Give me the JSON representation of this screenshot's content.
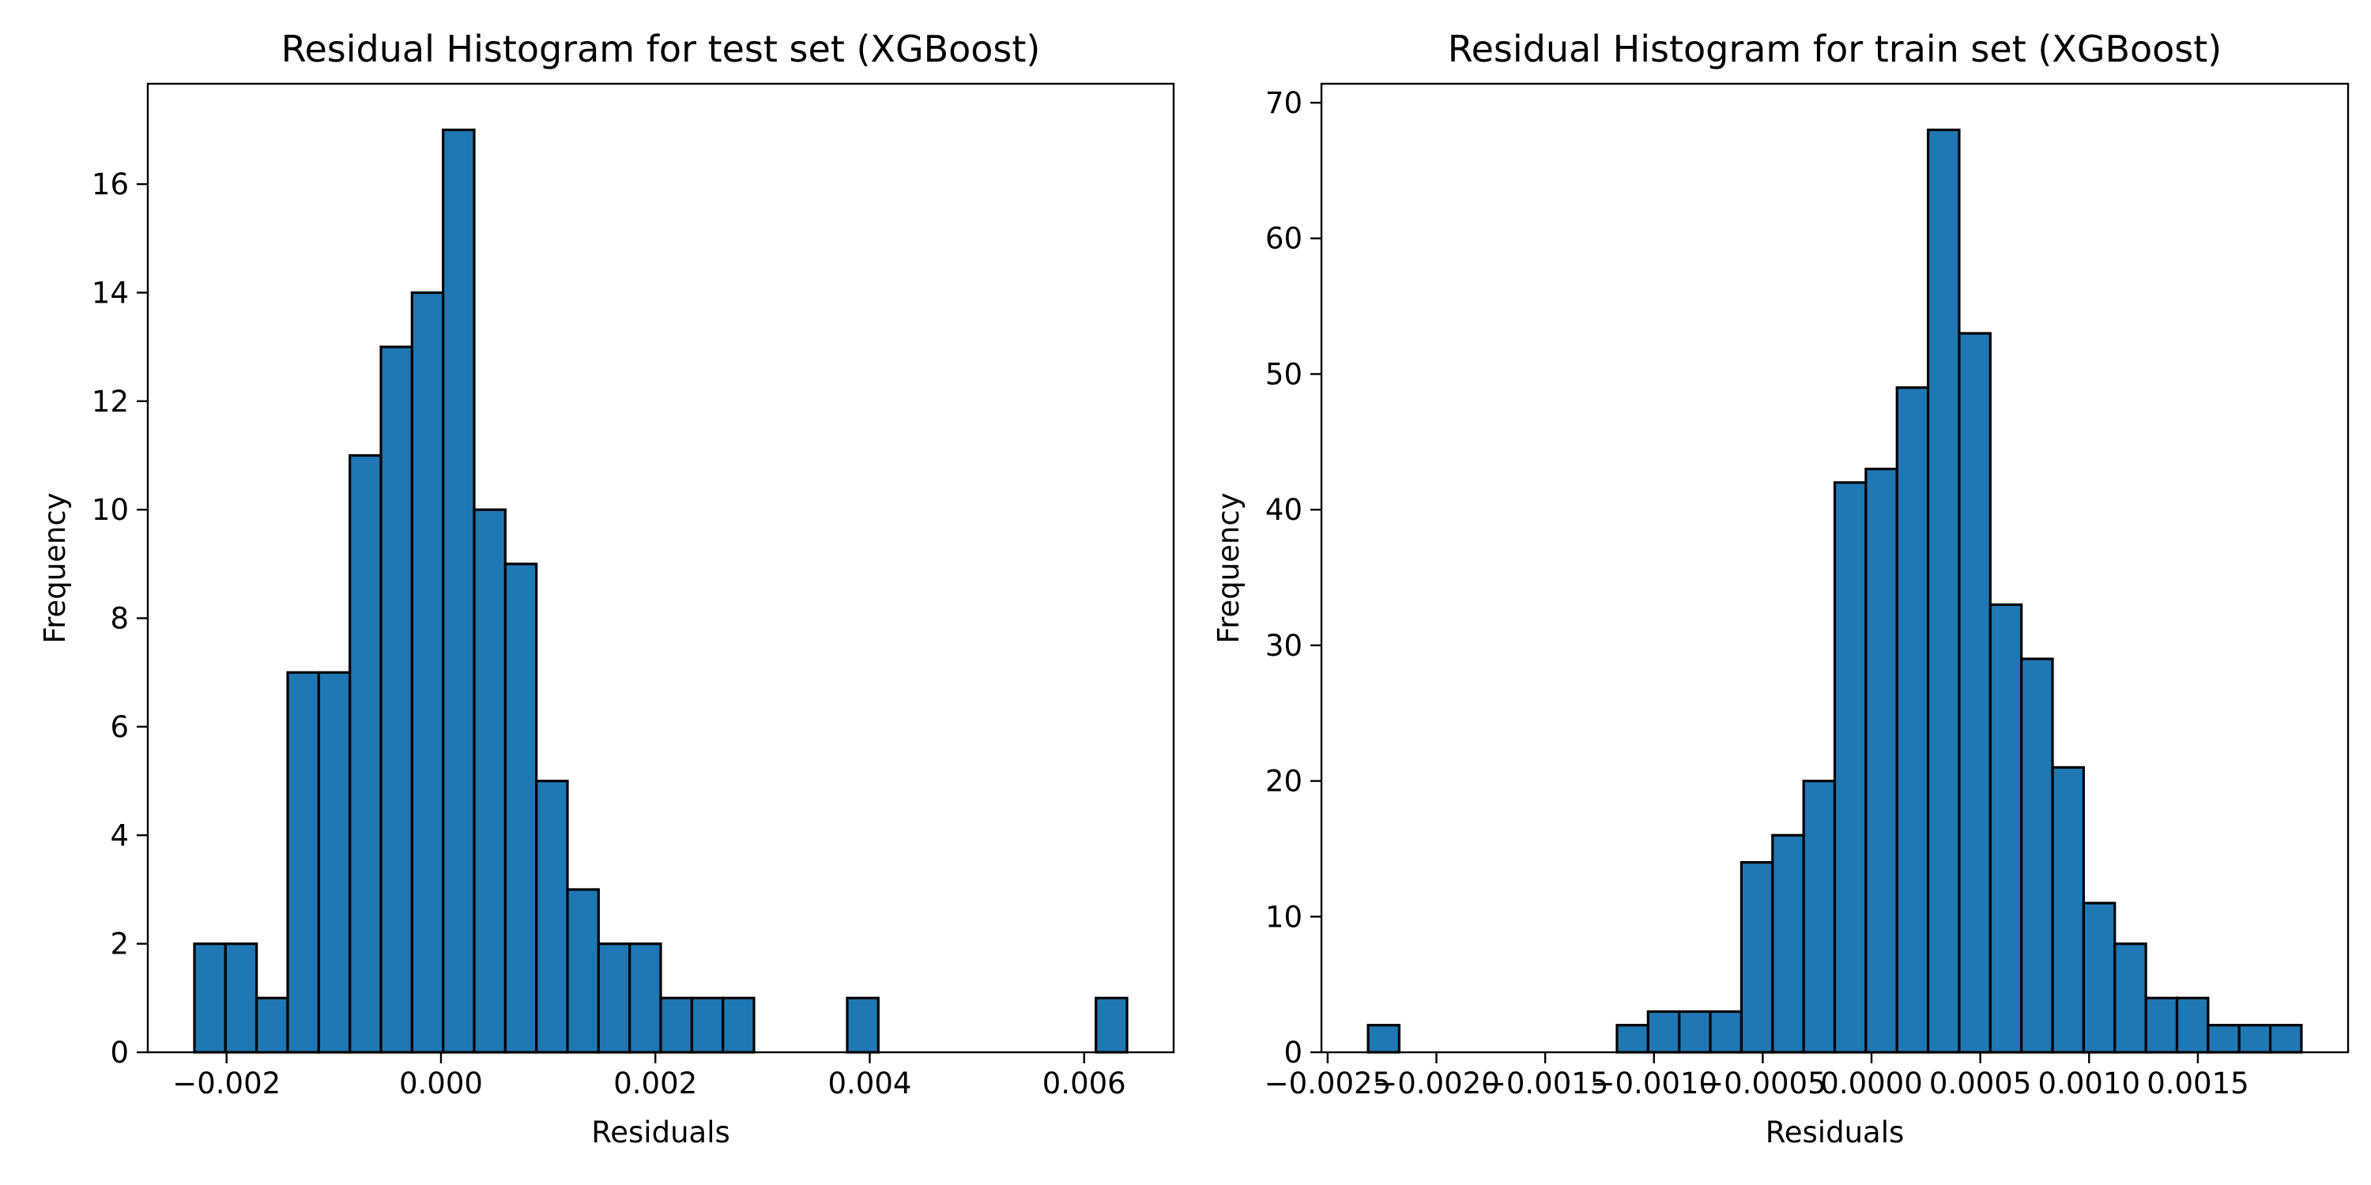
{
  "chart_data": [
    {
      "type": "bar",
      "title": "Residual Histogram for test set (XGBoost)",
      "xlabel": "Residuals",
      "ylabel": "Frequency",
      "bin_edges": [
        -0.0023,
        -0.00201,
        -0.00172,
        -0.00143,
        -0.00114,
        -0.00085,
        -0.00056,
        -0.00027,
        2e-05,
        0.00031,
        0.0006,
        0.00089,
        0.00118,
        0.00147,
        0.00176,
        0.00205,
        0.00234,
        0.00263,
        0.00292,
        0.00321,
        0.0035,
        0.00379,
        0.00408,
        0.00437,
        0.00466,
        0.00495,
        0.00524,
        0.00553,
        0.00582,
        0.00611,
        0.0064
      ],
      "values": [
        2,
        2,
        1,
        7,
        7,
        11,
        13,
        14,
        17,
        10,
        9,
        5,
        3,
        2,
        2,
        1,
        1,
        1,
        0,
        0,
        0,
        1,
        0,
        0,
        0,
        0,
        0,
        0,
        0,
        1
      ],
      "xlim": [
        -0.002735,
        0.006835
      ],
      "ylim": [
        0,
        17.85
      ],
      "xticks": [
        -0.002,
        0.0,
        0.002,
        0.004,
        0.006
      ],
      "xtick_labels": [
        "−0.002",
        "0.000",
        "0.002",
        "0.004",
        "0.006"
      ],
      "yticks": [
        0,
        2,
        4,
        6,
        8,
        10,
        12,
        14,
        16
      ],
      "ytick_labels": [
        "0",
        "2",
        "4",
        "6",
        "8",
        "10",
        "12",
        "14",
        "16"
      ],
      "grid": false,
      "colors": {
        "bar": "#1f77b4",
        "edge": "#000000"
      }
    },
    {
      "type": "bar",
      "title": "Residual Histogram for train set (XGBoost)",
      "xlabel": "Residuals",
      "ylabel": "Frequency",
      "bin_edges": [
        -0.002314,
        -0.002171,
        -0.002028,
        -0.001885,
        -0.001742,
        -0.001599,
        -0.001456,
        -0.001313,
        -0.00117,
        -0.001027,
        -0.000884,
        -0.000741,
        -0.000598,
        -0.000455,
        -0.000312,
        -0.000169,
        -2.6e-05,
        0.000117,
        0.00026,
        0.000403,
        0.000546,
        0.000689,
        0.000832,
        0.000975,
        0.001118,
        0.001261,
        0.001404,
        0.001547,
        0.00169,
        0.001833,
        0.001976
      ],
      "values": [
        2,
        0,
        0,
        0,
        0,
        0,
        0,
        0,
        2,
        3,
        3,
        3,
        14,
        16,
        20,
        42,
        43,
        49,
        68,
        53,
        33,
        29,
        21,
        11,
        8,
        4,
        4,
        2,
        2,
        2
      ],
      "xlim": [
        -0.0025285,
        0.0021905
      ],
      "ylim": [
        0,
        71.4
      ],
      "xticks": [
        -0.0025,
        -0.002,
        -0.0015,
        -0.001,
        -0.0005,
        0.0,
        0.0005,
        0.001,
        0.0015
      ],
      "xtick_labels": [
        "−0.0025",
        "−0.0020",
        "−0.0015",
        "−0.0010",
        "−0.0005",
        "0.0000",
        "0.0005",
        "0.0010",
        "0.0015"
      ],
      "yticks": [
        0,
        10,
        20,
        30,
        40,
        50,
        60,
        70
      ],
      "ytick_labels": [
        "0",
        "10",
        "20",
        "30",
        "40",
        "50",
        "60",
        "70"
      ],
      "grid": false,
      "colors": {
        "bar": "#1f77b4",
        "edge": "#000000"
      }
    }
  ]
}
